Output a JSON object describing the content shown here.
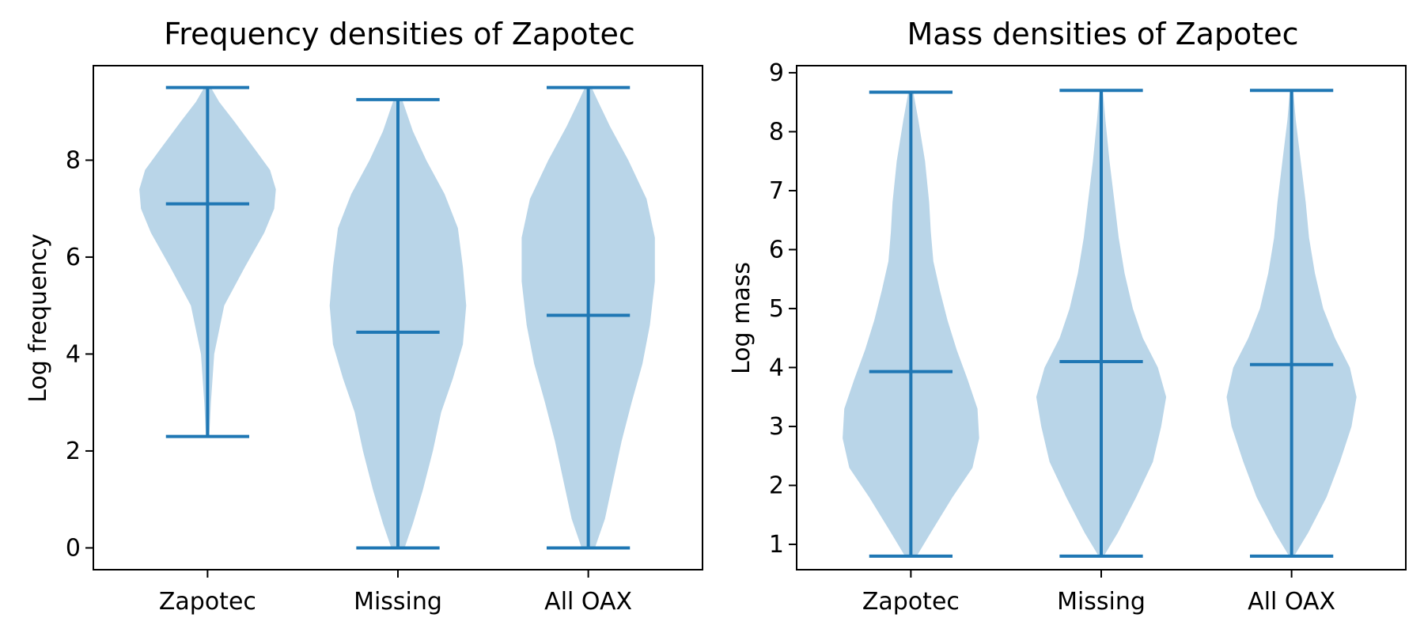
{
  "colors": {
    "body_fill": "#b9d5e8",
    "line": "#1f77b4",
    "axes": "#000000"
  },
  "chart_data": [
    {
      "type": "violin",
      "title": "Frequency densities of Zapotec",
      "xlabel": "",
      "ylabel": "Log frequency",
      "ylim": [
        -0.45,
        9.95
      ],
      "yticks": [
        0,
        2,
        4,
        6,
        8
      ],
      "categories": [
        "Zapotec",
        "Missing",
        "All OAX"
      ],
      "stats": [
        {
          "min": 2.3,
          "mean": 7.1,
          "max": 9.5
        },
        {
          "min": 0.0,
          "mean": 4.45,
          "max": 9.25
        },
        {
          "min": 0.0,
          "mean": 4.8,
          "max": 9.5
        }
      ],
      "density_profiles": [
        [
          [
            2.3,
            0.02
          ],
          [
            3.0,
            0.04
          ],
          [
            4.0,
            0.08
          ],
          [
            5.0,
            0.2
          ],
          [
            5.8,
            0.45
          ],
          [
            6.5,
            0.68
          ],
          [
            7.0,
            0.8
          ],
          [
            7.4,
            0.82
          ],
          [
            7.8,
            0.75
          ],
          [
            8.2,
            0.58
          ],
          [
            8.8,
            0.32
          ],
          [
            9.2,
            0.14
          ],
          [
            9.5,
            0.04
          ]
        ],
        [
          [
            0.0,
            0.08
          ],
          [
            0.5,
            0.18
          ],
          [
            1.2,
            0.3
          ],
          [
            2.0,
            0.42
          ],
          [
            2.8,
            0.52
          ],
          [
            3.5,
            0.66
          ],
          [
            4.2,
            0.78
          ],
          [
            5.0,
            0.82
          ],
          [
            5.8,
            0.78
          ],
          [
            6.6,
            0.72
          ],
          [
            7.3,
            0.56
          ],
          [
            8.0,
            0.34
          ],
          [
            8.6,
            0.18
          ],
          [
            9.25,
            0.05
          ]
        ],
        [
          [
            0.0,
            0.08
          ],
          [
            0.6,
            0.2
          ],
          [
            1.4,
            0.3
          ],
          [
            2.2,
            0.4
          ],
          [
            3.0,
            0.52
          ],
          [
            3.8,
            0.65
          ],
          [
            4.6,
            0.74
          ],
          [
            5.5,
            0.8
          ],
          [
            6.4,
            0.8
          ],
          [
            7.2,
            0.7
          ],
          [
            8.0,
            0.48
          ],
          [
            8.7,
            0.26
          ],
          [
            9.2,
            0.12
          ],
          [
            9.5,
            0.04
          ]
        ]
      ]
    },
    {
      "type": "violin",
      "title": "Mass densities of Zapotec",
      "xlabel": "",
      "ylabel": "Log mass",
      "ylim": [
        0.57,
        9.12
      ],
      "yticks": [
        1,
        2,
        3,
        4,
        5,
        6,
        7,
        8,
        9
      ],
      "categories": [
        "Zapotec",
        "Missing",
        "All OAX"
      ],
      "stats": [
        {
          "min": 0.8,
          "mean": 3.93,
          "max": 8.67
        },
        {
          "min": 0.8,
          "mean": 4.1,
          "max": 8.7
        },
        {
          "min": 0.8,
          "mean": 4.05,
          "max": 8.7
        }
      ],
      "density_profiles": [
        [
          [
            0.8,
            0.07
          ],
          [
            1.2,
            0.24
          ],
          [
            1.8,
            0.5
          ],
          [
            2.3,
            0.74
          ],
          [
            2.8,
            0.82
          ],
          [
            3.3,
            0.8
          ],
          [
            3.8,
            0.68
          ],
          [
            4.3,
            0.55
          ],
          [
            4.8,
            0.44
          ],
          [
            5.3,
            0.35
          ],
          [
            5.8,
            0.27
          ],
          [
            6.3,
            0.24
          ],
          [
            6.8,
            0.22
          ],
          [
            7.5,
            0.17
          ],
          [
            8.2,
            0.09
          ],
          [
            8.67,
            0.03
          ]
        ],
        [
          [
            0.8,
            0.03
          ],
          [
            1.2,
            0.2
          ],
          [
            1.8,
            0.42
          ],
          [
            2.4,
            0.62
          ],
          [
            3.0,
            0.72
          ],
          [
            3.5,
            0.78
          ],
          [
            4.0,
            0.68
          ],
          [
            4.5,
            0.5
          ],
          [
            5.0,
            0.38
          ],
          [
            5.6,
            0.28
          ],
          [
            6.2,
            0.21
          ],
          [
            6.8,
            0.16
          ],
          [
            7.5,
            0.1
          ],
          [
            8.2,
            0.05
          ],
          [
            8.7,
            0.02
          ]
        ],
        [
          [
            0.8,
            0.03
          ],
          [
            1.2,
            0.2
          ],
          [
            1.8,
            0.42
          ],
          [
            2.4,
            0.58
          ],
          [
            3.0,
            0.72
          ],
          [
            3.5,
            0.78
          ],
          [
            4.0,
            0.7
          ],
          [
            4.5,
            0.52
          ],
          [
            5.0,
            0.38
          ],
          [
            5.6,
            0.28
          ],
          [
            6.2,
            0.21
          ],
          [
            6.8,
            0.17
          ],
          [
            7.5,
            0.11
          ],
          [
            8.2,
            0.05
          ],
          [
            8.7,
            0.02
          ]
        ]
      ]
    }
  ]
}
